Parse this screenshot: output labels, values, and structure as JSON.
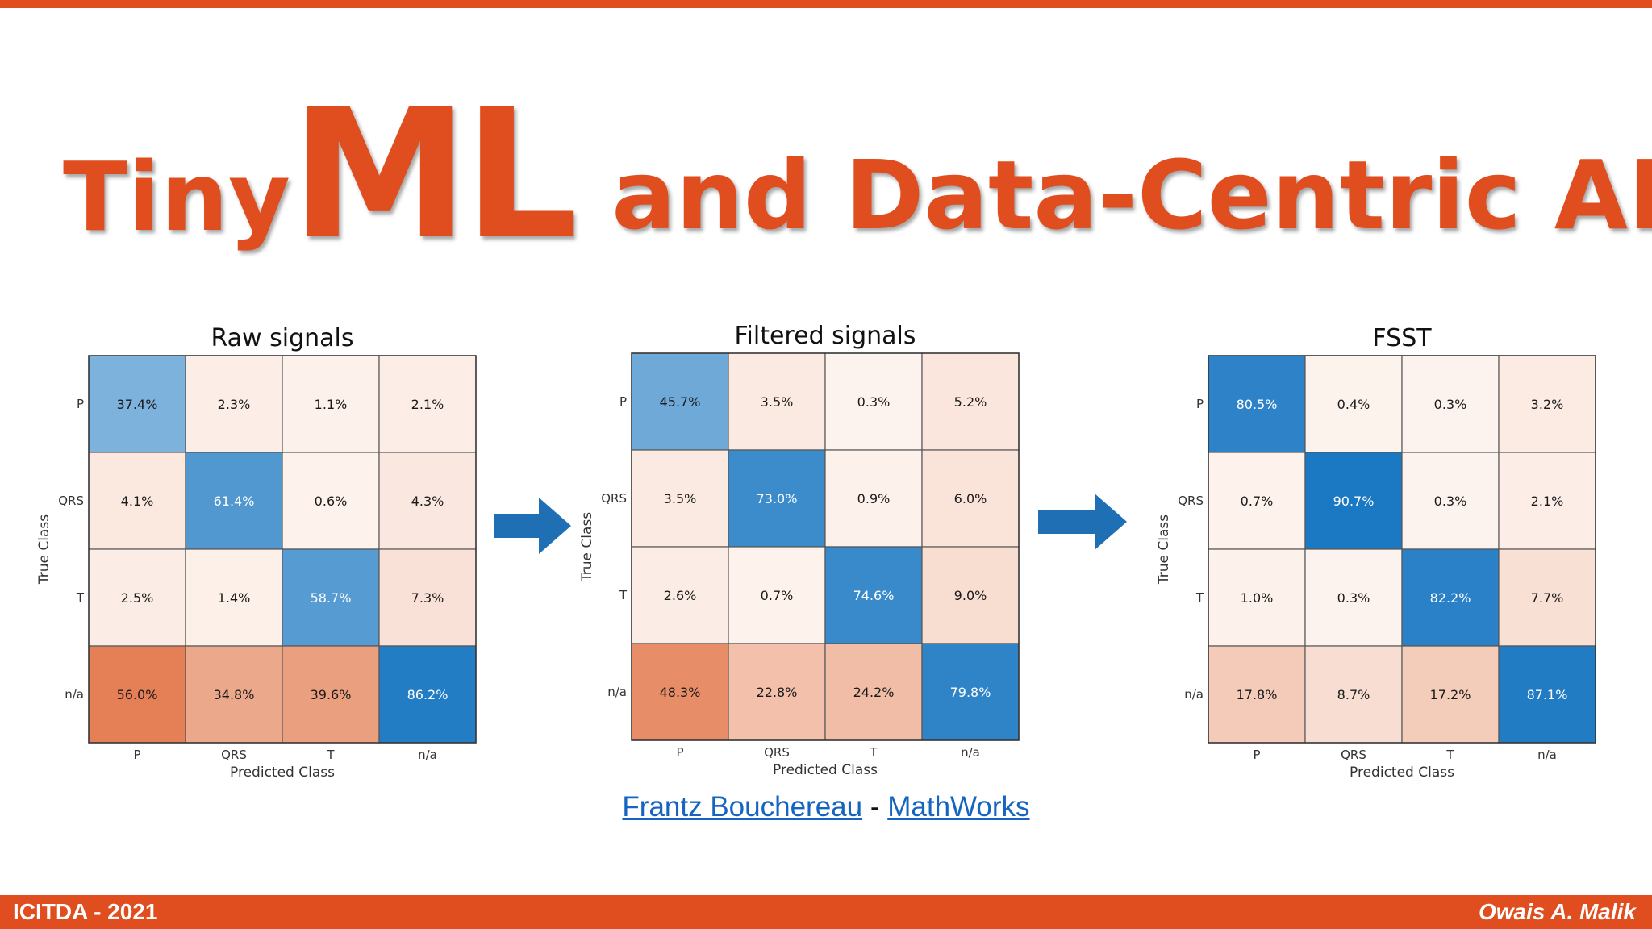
{
  "slide": {
    "title_tiny": "Tiny",
    "title_ml": "ML",
    "title_rest": "and Data-Centric AI",
    "credit_author": "Frantz Bouchereau",
    "credit_sep": "-",
    "credit_org": "MathWorks",
    "footer_left": "ICITDA - 2021",
    "footer_right": "Owais A. Malik",
    "accent_color": "#e04e1f",
    "arrow_color": "#1f6fb5"
  },
  "chart_data": [
    {
      "type": "heatmap",
      "title": "Raw signals",
      "xlabel": "Predicted Class",
      "ylabel": "True Class",
      "x_categories": [
        "P",
        "QRS",
        "T",
        "n/a"
      ],
      "y_categories": [
        "P",
        "QRS",
        "T",
        "n/a"
      ],
      "values": [
        [
          37.4,
          2.3,
          1.1,
          2.1
        ],
        [
          4.1,
          61.4,
          0.6,
          4.3
        ],
        [
          2.5,
          1.4,
          58.7,
          7.3
        ],
        [
          56.0,
          34.8,
          39.6,
          86.2
        ]
      ],
      "labels": [
        [
          "37.4%",
          "2.3%",
          "1.1%",
          "2.1%"
        ],
        [
          "4.1%",
          "61.4%",
          "0.6%",
          "4.3%"
        ],
        [
          "2.5%",
          "1.4%",
          "58.7%",
          "7.3%"
        ],
        [
          "56.0%",
          "34.8%",
          "39.6%",
          "86.2%"
        ]
      ]
    },
    {
      "type": "heatmap",
      "title": "Filtered signals",
      "xlabel": "Predicted Class",
      "ylabel": "True Class",
      "x_categories": [
        "P",
        "QRS",
        "T",
        "n/a"
      ],
      "y_categories": [
        "P",
        "QRS",
        "T",
        "n/a"
      ],
      "values": [
        [
          45.7,
          3.5,
          0.3,
          5.2
        ],
        [
          3.5,
          73.0,
          0.9,
          6.0
        ],
        [
          2.6,
          0.7,
          74.6,
          9.0
        ],
        [
          48.3,
          22.8,
          24.2,
          79.8
        ]
      ],
      "labels": [
        [
          "45.7%",
          "3.5%",
          "0.3%",
          "5.2%"
        ],
        [
          "3.5%",
          "73.0%",
          "0.9%",
          "6.0%"
        ],
        [
          "2.6%",
          "0.7%",
          "74.6%",
          "9.0%"
        ],
        [
          "48.3%",
          "22.8%",
          "24.2%",
          "79.8%"
        ]
      ]
    },
    {
      "type": "heatmap",
      "title": "FSST",
      "xlabel": "Predicted Class",
      "ylabel": "True Class",
      "x_categories": [
        "P",
        "QRS",
        "T",
        "n/a"
      ],
      "y_categories": [
        "P",
        "QRS",
        "T",
        "n/a"
      ],
      "values": [
        [
          80.5,
          0.4,
          0.3,
          3.2
        ],
        [
          0.7,
          90.7,
          0.3,
          2.1
        ],
        [
          1.0,
          0.3,
          82.2,
          7.7
        ],
        [
          17.8,
          8.7,
          17.2,
          87.1
        ]
      ],
      "labels": [
        [
          "80.5%",
          "0.4%",
          "0.3%",
          "3.2%"
        ],
        [
          "0.7%",
          "90.7%",
          "0.3%",
          "2.1%"
        ],
        [
          "1.0%",
          "0.3%",
          "82.2%",
          "7.7%"
        ],
        [
          "17.8%",
          "8.7%",
          "17.2%",
          "87.1%"
        ]
      ]
    }
  ]
}
